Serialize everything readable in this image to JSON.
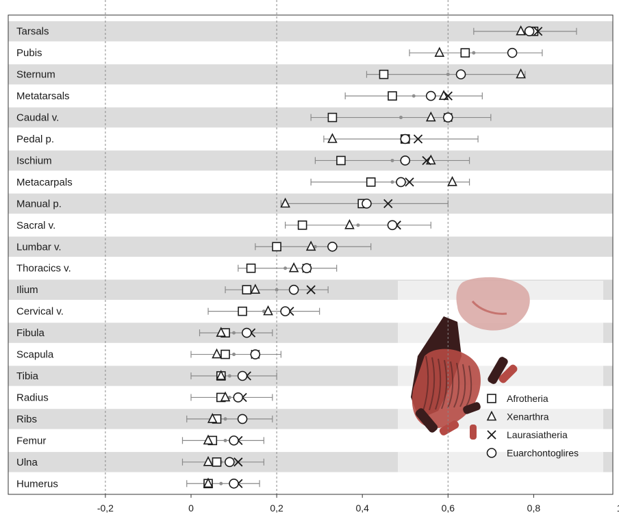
{
  "chart_data": {
    "type": "scatter",
    "title": "",
    "xlabel": "",
    "ylabel": "",
    "xlim": [
      -0.3,
      1.0
    ],
    "x_ticks": [
      "-0,2",
      "0",
      "0,2",
      "0,4",
      "0,6",
      "0,8",
      "1"
    ],
    "x_tick_values": [
      -0.2,
      0,
      0.2,
      0.4,
      0.6,
      0.8,
      1.0
    ],
    "gridlines_x": [
      -0.2,
      0.2,
      0.6
    ],
    "legend_position": "bottom-right",
    "series": [
      {
        "name": "Afrotheria",
        "marker": "square"
      },
      {
        "name": "Xenarthra",
        "marker": "triangle"
      },
      {
        "name": "Laurasiatheria",
        "marker": "cross"
      },
      {
        "name": "Euarchontoglires",
        "marker": "circle"
      }
    ],
    "rows": [
      {
        "label": "Tarsals",
        "mean": 0.79,
        "lo": 0.66,
        "hi": 0.9,
        "Afrotheria": 0.8,
        "Xenarthra": 0.77,
        "Laurasiatheria": 0.81,
        "Euarchontoglires": 0.79
      },
      {
        "label": "Pubis",
        "mean": 0.66,
        "lo": 0.51,
        "hi": 0.82,
        "Afrotheria": 0.64,
        "Xenarthra": 0.58,
        "Laurasiatheria": null,
        "Euarchontoglires": 0.75
      },
      {
        "label": "Sternum",
        "mean": 0.6,
        "lo": 0.41,
        "hi": 0.78,
        "Afrotheria": 0.45,
        "Xenarthra": 0.77,
        "Laurasiatheria": null,
        "Euarchontoglires": 0.63
      },
      {
        "label": "Metatarsals",
        "mean": 0.52,
        "lo": 0.36,
        "hi": 0.68,
        "Afrotheria": 0.47,
        "Xenarthra": 0.59,
        "Laurasiatheria": 0.6,
        "Euarchontoglires": 0.56
      },
      {
        "label": "Caudal v.",
        "mean": 0.49,
        "lo": 0.28,
        "hi": 0.7,
        "Afrotheria": 0.33,
        "Xenarthra": 0.56,
        "Laurasiatheria": 0.6,
        "Euarchontoglires": 0.6
      },
      {
        "label": "Pedal p.",
        "mean": 0.5,
        "lo": 0.31,
        "hi": 0.67,
        "Afrotheria": 0.5,
        "Xenarthra": 0.33,
        "Laurasiatheria": 0.53,
        "Euarchontoglires": 0.5
      },
      {
        "label": "Ischium",
        "mean": 0.47,
        "lo": 0.29,
        "hi": 0.65,
        "Afrotheria": 0.35,
        "Xenarthra": 0.56,
        "Laurasiatheria": 0.55,
        "Euarchontoglires": 0.5
      },
      {
        "label": "Metacarpals",
        "mean": 0.47,
        "lo": 0.28,
        "hi": 0.65,
        "Afrotheria": 0.42,
        "Xenarthra": 0.61,
        "Laurasiatheria": 0.51,
        "Euarchontoglires": 0.49
      },
      {
        "label": "Manual p.",
        "mean": 0.41,
        "lo": 0.21,
        "hi": 0.6,
        "Afrotheria": 0.4,
        "Xenarthra": 0.22,
        "Laurasiatheria": 0.46,
        "Euarchontoglires": 0.41
      },
      {
        "label": "Sacral v.",
        "mean": 0.39,
        "lo": 0.22,
        "hi": 0.56,
        "Afrotheria": 0.26,
        "Xenarthra": 0.37,
        "Laurasiatheria": 0.48,
        "Euarchontoglires": 0.47
      },
      {
        "label": "Lumbar v.",
        "mean": 0.29,
        "lo": 0.15,
        "hi": 0.42,
        "Afrotheria": 0.2,
        "Xenarthra": 0.28,
        "Laurasiatheria": null,
        "Euarchontoglires": 0.33
      },
      {
        "label": "Thoracics v.",
        "mean": 0.22,
        "lo": 0.11,
        "hi": 0.34,
        "Afrotheria": 0.14,
        "Xenarthra": 0.24,
        "Laurasiatheria": 0.27,
        "Euarchontoglires": 0.27
      },
      {
        "label": "Ilium",
        "mean": 0.2,
        "lo": 0.08,
        "hi": 0.32,
        "Afrotheria": 0.13,
        "Xenarthra": 0.15,
        "Laurasiatheria": 0.28,
        "Euarchontoglires": 0.24
      },
      {
        "label": "Cervical v.",
        "mean": 0.17,
        "lo": 0.04,
        "hi": 0.3,
        "Afrotheria": 0.12,
        "Xenarthra": 0.18,
        "Laurasiatheria": 0.23,
        "Euarchontoglires": 0.22
      },
      {
        "label": "Fibula",
        "mean": 0.1,
        "lo": 0.02,
        "hi": 0.19,
        "Afrotheria": 0.08,
        "Xenarthra": 0.07,
        "Laurasiatheria": 0.14,
        "Euarchontoglires": 0.13
      },
      {
        "label": "Scapula",
        "mean": 0.1,
        "lo": 0.0,
        "hi": 0.21,
        "Afrotheria": 0.08,
        "Xenarthra": 0.06,
        "Laurasiatheria": 0.15,
        "Euarchontoglires": 0.15
      },
      {
        "label": "Tibia",
        "mean": 0.09,
        "lo": 0.0,
        "hi": 0.2,
        "Afrotheria": 0.07,
        "Xenarthra": 0.07,
        "Laurasiatheria": 0.13,
        "Euarchontoglires": 0.12
      },
      {
        "label": "Radius",
        "mean": 0.09,
        "lo": 0.0,
        "hi": 0.19,
        "Afrotheria": 0.07,
        "Xenarthra": 0.08,
        "Laurasiatheria": 0.12,
        "Euarchontoglires": 0.11
      },
      {
        "label": "Ribs",
        "mean": 0.08,
        "lo": -0.01,
        "hi": 0.19,
        "Afrotheria": 0.06,
        "Xenarthra": 0.05,
        "Laurasiatheria": null,
        "Euarchontoglires": 0.12
      },
      {
        "label": "Femur",
        "mean": 0.08,
        "lo": -0.02,
        "hi": 0.17,
        "Afrotheria": 0.05,
        "Xenarthra": 0.04,
        "Laurasiatheria": 0.11,
        "Euarchontoglires": 0.1
      },
      {
        "label": "Ulna",
        "mean": 0.07,
        "lo": -0.02,
        "hi": 0.17,
        "Afrotheria": 0.06,
        "Xenarthra": 0.04,
        "Laurasiatheria": 0.11,
        "Euarchontoglires": 0.09
      },
      {
        "label": "Humerus",
        "mean": 0.07,
        "lo": -0.01,
        "hi": 0.16,
        "Afrotheria": 0.04,
        "Xenarthra": 0.04,
        "Laurasiatheria": 0.11,
        "Euarchontoglires": 0.1
      }
    ]
  },
  "colors": {
    "band": "#dcdcdc",
    "grid": "#888888",
    "errorbar": "#8a8a8a",
    "mean": "#8f8f8f",
    "marker": "#1a1a1a",
    "illustration_red": "#b54a44",
    "illustration_dark": "#3a1c1c",
    "illustration_pale": "#d8a6a2"
  },
  "illustration": {
    "icon": "skeleton-illustration"
  }
}
